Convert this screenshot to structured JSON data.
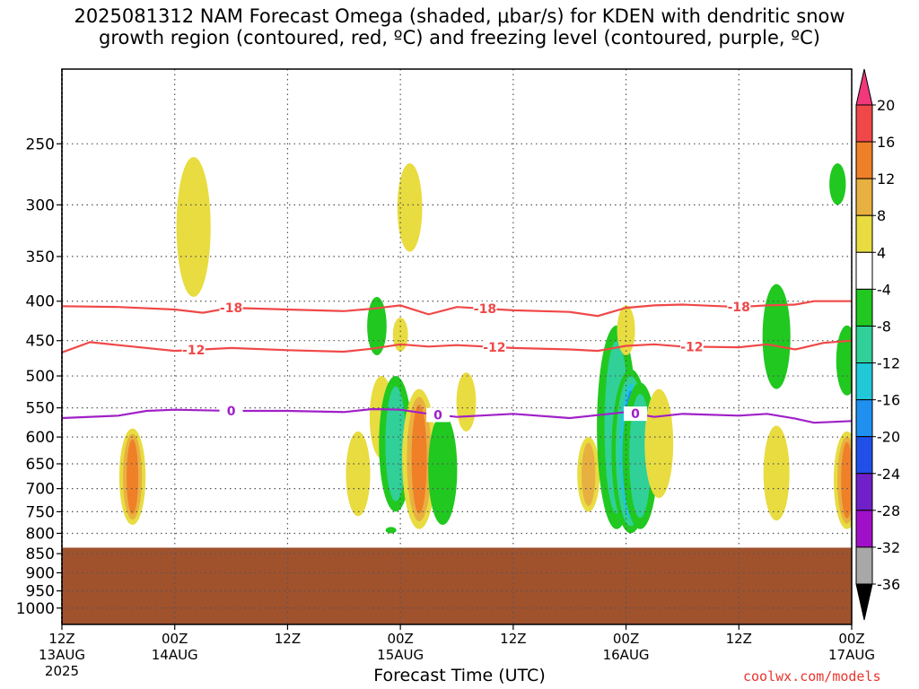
{
  "title": "2025081312 NAM Forecast Omega (shaded, μbar/s) for KDEN with dendritic snow\ngrowth region (contoured, red, ºC) and freezing level (contoured, purple, ºC)",
  "xlabel": "Forecast Time (UTC)",
  "credit": "coolwx.com/models",
  "chart_data": {
    "type": "heatmap",
    "xlabel": "Forecast Time (UTC)",
    "ylabel": "",
    "x_ticks": [
      {
        "hour": 0,
        "label": "12Z",
        "sub": "13AUG",
        "sub2": "2025"
      },
      {
        "hour": 12,
        "label": "00Z",
        "sub": "14AUG",
        "sub2": ""
      },
      {
        "hour": 24,
        "label": "12Z",
        "sub": "",
        "sub2": ""
      },
      {
        "hour": 36,
        "label": "00Z",
        "sub": "15AUG",
        "sub2": ""
      },
      {
        "hour": 48,
        "label": "12Z",
        "sub": "",
        "sub2": ""
      },
      {
        "hour": 60,
        "label": "00Z",
        "sub": "16AUG",
        "sub2": ""
      },
      {
        "hour": 72,
        "label": "12Z",
        "sub": "",
        "sub2": ""
      },
      {
        "hour": 84,
        "label": "00Z",
        "sub": "17AUG",
        "sub2": ""
      }
    ],
    "x_range_hours": [
      0,
      84
    ],
    "y_ticks": [
      250,
      300,
      350,
      400,
      450,
      500,
      550,
      600,
      650,
      700,
      750,
      800,
      850,
      900,
      950,
      1000
    ],
    "y_range_mb": [
      200,
      1050
    ],
    "grid": true,
    "colorbar": {
      "labels": [
        20,
        16,
        12,
        8,
        4,
        -4,
        -8,
        -12,
        -16,
        -20,
        -24,
        -28,
        -32,
        -36
      ],
      "colors": [
        "#f0387a",
        "#f04848",
        "#f08028",
        "#e8b040",
        "#e8dc40",
        "#ffffff",
        "#20c820",
        "#30d098",
        "#20c8d8",
        "#2090f0",
        "#2050e8",
        "#7020c8",
        "#a010c8",
        "#a8a8a8",
        "#000000"
      ]
    },
    "contours": [
      {
        "name": "-18",
        "color": "#f04848",
        "hours": [
          0,
          6,
          12,
          15,
          18,
          24,
          30,
          33,
          36,
          39,
          42,
          48,
          54,
          57,
          60,
          63,
          66,
          72,
          75,
          78,
          80,
          84
        ],
        "values": [
          406,
          407,
          410,
          414,
          408,
          410,
          412,
          409,
          405,
          416,
          407,
          411,
          413,
          418,
          408,
          405,
          404,
          407,
          405,
          404,
          400,
          400
        ],
        "labels_at": [
          18,
          45,
          72
        ]
      },
      {
        "name": "-12",
        "color": "#f04848",
        "hours": [
          0,
          3,
          6,
          12,
          18,
          24,
          30,
          33,
          36,
          39,
          42,
          48,
          54,
          57,
          60,
          63,
          66,
          72,
          75,
          78,
          81,
          84
        ],
        "values": [
          466,
          452,
          456,
          464,
          460,
          463,
          465,
          461,
          455,
          458,
          456,
          460,
          462,
          464,
          457,
          455,
          458,
          459,
          455,
          462,
          453,
          450
        ],
        "labels_at": [
          14,
          46,
          67
        ]
      },
      {
        "name": "0",
        "color": "#a020c8",
        "hours": [
          0,
          6,
          9,
          12,
          18,
          24,
          30,
          33,
          36,
          39,
          42,
          48,
          54,
          57,
          60,
          63,
          66,
          72,
          75,
          78,
          80,
          84
        ],
        "values": [
          567,
          563,
          555,
          553,
          555,
          555,
          557,
          552,
          553,
          560,
          565,
          560,
          567,
          562,
          557,
          565,
          560,
          563,
          560,
          568,
          575,
          572
        ],
        "labels_at": [
          18,
          40,
          61
        ]
      }
    ],
    "omega_features": [
      {
        "hour": 7.5,
        "p_min": 585,
        "p_max": 780,
        "peak": 14
      },
      {
        "hour": 14.0,
        "p_min": 260,
        "p_max": 395,
        "peak": 4
      },
      {
        "hour": 31.5,
        "p_min": 590,
        "p_max": 760,
        "peak": 4
      },
      {
        "hour": 33.5,
        "p_min": 395,
        "p_max": 470,
        "peak": -4
      },
      {
        "hour": 34.0,
        "p_min": 500,
        "p_max": 640,
        "peak": 4
      },
      {
        "hour": 36.0,
        "p_min": 420,
        "p_max": 465,
        "peak": 4
      },
      {
        "hour": 37.0,
        "p_min": 265,
        "p_max": 345,
        "peak": 4
      },
      {
        "hour": 35.5,
        "p_min": 500,
        "p_max": 750,
        "peak": -8
      },
      {
        "hour": 38.0,
        "p_min": 520,
        "p_max": 790,
        "peak": 14
      },
      {
        "hour": 40.5,
        "p_min": 560,
        "p_max": 780,
        "peak": -4
      },
      {
        "hour": 43.0,
        "p_min": 495,
        "p_max": 590,
        "peak": 4
      },
      {
        "hour": 35.0,
        "p_min": 785,
        "p_max": 800,
        "peak": -4
      },
      {
        "hour": 56.0,
        "p_min": 600,
        "p_max": 750,
        "peak": 8
      },
      {
        "hour": 59.0,
        "p_min": 430,
        "p_max": 790,
        "peak": -8
      },
      {
        "hour": 60.5,
        "p_min": 490,
        "p_max": 800,
        "peak": -16
      },
      {
        "hour": 61.5,
        "p_min": 510,
        "p_max": 790,
        "peak": -8
      },
      {
        "hour": 60.0,
        "p_min": 405,
        "p_max": 470,
        "peak": 4
      },
      {
        "hour": 63.5,
        "p_min": 520,
        "p_max": 720,
        "peak": 4
      },
      {
        "hour": 76.0,
        "p_min": 380,
        "p_max": 520,
        "peak": -4
      },
      {
        "hour": 76.0,
        "p_min": 580,
        "p_max": 770,
        "peak": 4
      },
      {
        "hour": 82.5,
        "p_min": 265,
        "p_max": 300,
        "peak": -4
      },
      {
        "hour": 83.5,
        "p_min": 430,
        "p_max": 530,
        "peak": -4
      },
      {
        "hour": 83.5,
        "p_min": 590,
        "p_max": 790,
        "peak": 14
      }
    ],
    "terrain_top_mb": 835
  }
}
